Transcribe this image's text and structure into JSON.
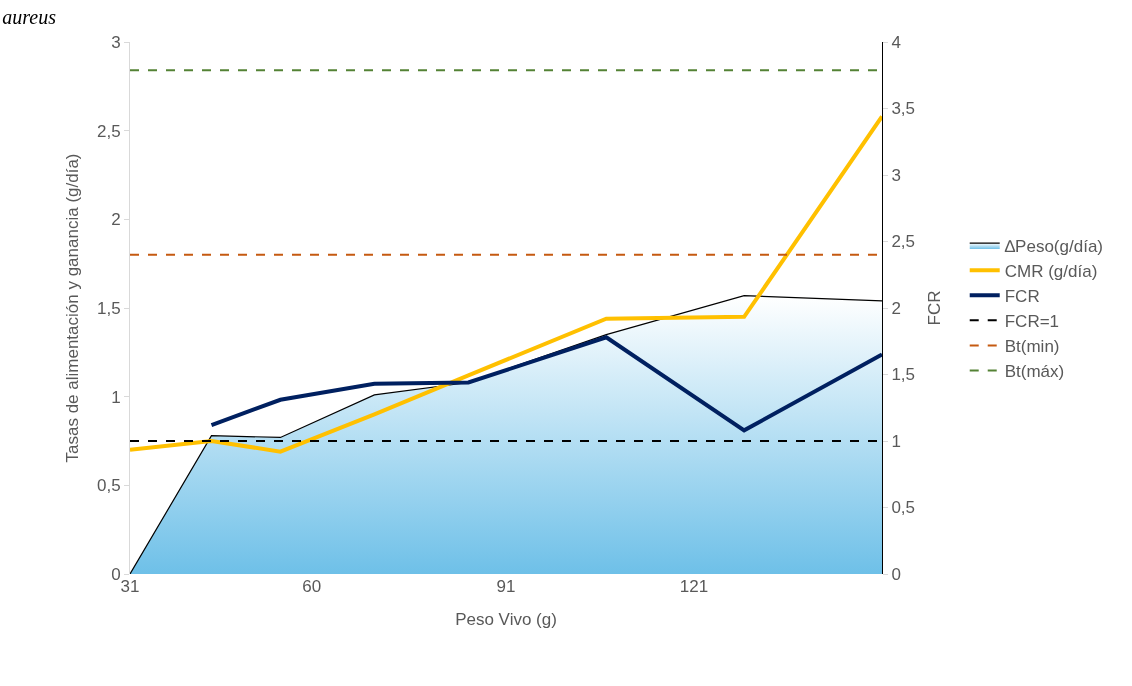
{
  "chart_data": {
    "type": "line",
    "title": "aureus",
    "xlabel": "Peso Vivo (g)",
    "ylabel": "Tasas de alimentación y ganancia (g/día)",
    "y2label": "FCR",
    "x": [
      31,
      44,
      55,
      70,
      85,
      107,
      129,
      151
    ],
    "xlim": [
      31,
      151
    ],
    "xticks": [
      31,
      60,
      91,
      121
    ],
    "ylim": [
      0,
      3
    ],
    "yticks": [
      {
        "value": 0,
        "label": "0"
      },
      {
        "value": 0.5,
        "label": "0,5"
      },
      {
        "value": 1,
        "label": "1"
      },
      {
        "value": 1.5,
        "label": "1,5"
      },
      {
        "value": 2,
        "label": "2"
      },
      {
        "value": 2.5,
        "label": "2,5"
      },
      {
        "value": 3,
        "label": "3"
      }
    ],
    "y2lim": [
      0,
      4
    ],
    "y2ticks": [
      {
        "value": 0,
        "label": "0"
      },
      {
        "value": 0.5,
        "label": "0,5"
      },
      {
        "value": 1,
        "label": "1"
      },
      {
        "value": 1.5,
        "label": "1,5"
      },
      {
        "value": 2,
        "label": "2"
      },
      {
        "value": 2.5,
        "label": "2,5"
      },
      {
        "value": 3,
        "label": "3"
      },
      {
        "value": 3.5,
        "label": "3,5"
      },
      {
        "value": 4,
        "label": "4"
      }
    ],
    "series": [
      {
        "name": "∆Peso(g/día)",
        "type": "area",
        "color": "#6ec0e8",
        "values": [
          0,
          0.78,
          0.77,
          1.01,
          1.08,
          1.35,
          1.57,
          1.54
        ]
      },
      {
        "name": "CMR (g/día)",
        "color": "#ffc000",
        "values": [
          0.7,
          0.75,
          0.69,
          0.9,
          1.12,
          1.44,
          1.45,
          2.58
        ]
      },
      {
        "name": "FCR",
        "axis": "y2",
        "color": "#002060",
        "values": [
          null,
          1.12,
          1.31,
          1.43,
          1.44,
          1.78,
          1.08,
          1.65
        ]
      }
    ],
    "ref_lines": [
      {
        "axis": "y2",
        "value": 1,
        "label": "FCR=1",
        "color": "#000000",
        "line_style": "dashed"
      },
      {
        "axis": "y",
        "value": 1.8,
        "label": "Bt(min)",
        "color": "#c55a11",
        "line_style": "dashed"
      },
      {
        "axis": "y",
        "value": 2.84,
        "label": "Bt(máx)",
        "color": "#548235",
        "line_style": "dashed"
      }
    ],
    "grid": false,
    "legend": "right",
    "marker": "none",
    "line_style": "solid"
  }
}
